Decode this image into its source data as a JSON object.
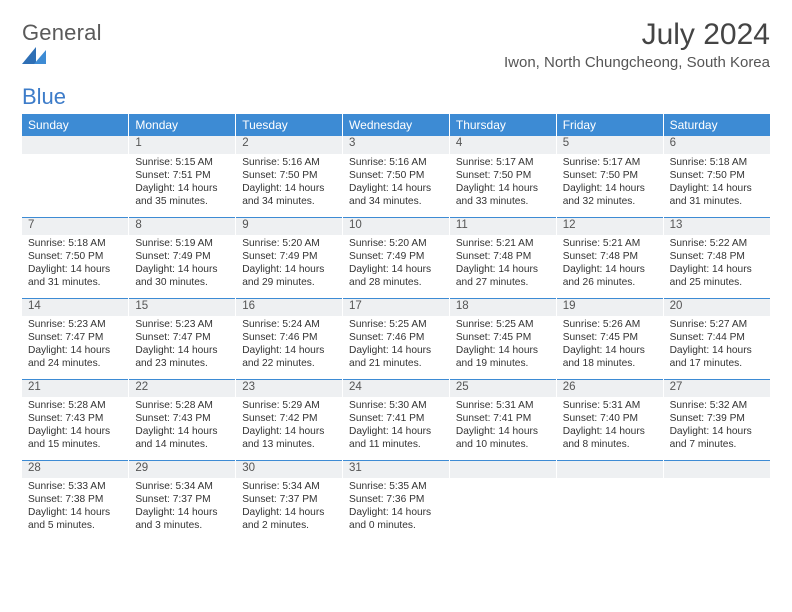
{
  "logo": {
    "word1": "General",
    "word2": "Blue",
    "colorGray": "#5a5a5a",
    "colorBlue": "#3d7cc9"
  },
  "title": "July 2024",
  "subtitle": "Iwon, North Chungcheong, South Korea",
  "headerBarColor": "#3d8bd4",
  "dayNumBg": "#eef0f2",
  "dayNames": [
    "Sunday",
    "Monday",
    "Tuesday",
    "Wednesday",
    "Thursday",
    "Friday",
    "Saturday"
  ],
  "weeks": [
    [
      null,
      {
        "n": "1",
        "sr": "5:15 AM",
        "ss": "7:51 PM",
        "dl": "14 hours and 35 minutes."
      },
      {
        "n": "2",
        "sr": "5:16 AM",
        "ss": "7:50 PM",
        "dl": "14 hours and 34 minutes."
      },
      {
        "n": "3",
        "sr": "5:16 AM",
        "ss": "7:50 PM",
        "dl": "14 hours and 34 minutes."
      },
      {
        "n": "4",
        "sr": "5:17 AM",
        "ss": "7:50 PM",
        "dl": "14 hours and 33 minutes."
      },
      {
        "n": "5",
        "sr": "5:17 AM",
        "ss": "7:50 PM",
        "dl": "14 hours and 32 minutes."
      },
      {
        "n": "6",
        "sr": "5:18 AM",
        "ss": "7:50 PM",
        "dl": "14 hours and 31 minutes."
      }
    ],
    [
      {
        "n": "7",
        "sr": "5:18 AM",
        "ss": "7:50 PM",
        "dl": "14 hours and 31 minutes."
      },
      {
        "n": "8",
        "sr": "5:19 AM",
        "ss": "7:49 PM",
        "dl": "14 hours and 30 minutes."
      },
      {
        "n": "9",
        "sr": "5:20 AM",
        "ss": "7:49 PM",
        "dl": "14 hours and 29 minutes."
      },
      {
        "n": "10",
        "sr": "5:20 AM",
        "ss": "7:49 PM",
        "dl": "14 hours and 28 minutes."
      },
      {
        "n": "11",
        "sr": "5:21 AM",
        "ss": "7:48 PM",
        "dl": "14 hours and 27 minutes."
      },
      {
        "n": "12",
        "sr": "5:21 AM",
        "ss": "7:48 PM",
        "dl": "14 hours and 26 minutes."
      },
      {
        "n": "13",
        "sr": "5:22 AM",
        "ss": "7:48 PM",
        "dl": "14 hours and 25 minutes."
      }
    ],
    [
      {
        "n": "14",
        "sr": "5:23 AM",
        "ss": "7:47 PM",
        "dl": "14 hours and 24 minutes."
      },
      {
        "n": "15",
        "sr": "5:23 AM",
        "ss": "7:47 PM",
        "dl": "14 hours and 23 minutes."
      },
      {
        "n": "16",
        "sr": "5:24 AM",
        "ss": "7:46 PM",
        "dl": "14 hours and 22 minutes."
      },
      {
        "n": "17",
        "sr": "5:25 AM",
        "ss": "7:46 PM",
        "dl": "14 hours and 21 minutes."
      },
      {
        "n": "18",
        "sr": "5:25 AM",
        "ss": "7:45 PM",
        "dl": "14 hours and 19 minutes."
      },
      {
        "n": "19",
        "sr": "5:26 AM",
        "ss": "7:45 PM",
        "dl": "14 hours and 18 minutes."
      },
      {
        "n": "20",
        "sr": "5:27 AM",
        "ss": "7:44 PM",
        "dl": "14 hours and 17 minutes."
      }
    ],
    [
      {
        "n": "21",
        "sr": "5:28 AM",
        "ss": "7:43 PM",
        "dl": "14 hours and 15 minutes."
      },
      {
        "n": "22",
        "sr": "5:28 AM",
        "ss": "7:43 PM",
        "dl": "14 hours and 14 minutes."
      },
      {
        "n": "23",
        "sr": "5:29 AM",
        "ss": "7:42 PM",
        "dl": "14 hours and 13 minutes."
      },
      {
        "n": "24",
        "sr": "5:30 AM",
        "ss": "7:41 PM",
        "dl": "14 hours and 11 minutes."
      },
      {
        "n": "25",
        "sr": "5:31 AM",
        "ss": "7:41 PM",
        "dl": "14 hours and 10 minutes."
      },
      {
        "n": "26",
        "sr": "5:31 AM",
        "ss": "7:40 PM",
        "dl": "14 hours and 8 minutes."
      },
      {
        "n": "27",
        "sr": "5:32 AM",
        "ss": "7:39 PM",
        "dl": "14 hours and 7 minutes."
      }
    ],
    [
      {
        "n": "28",
        "sr": "5:33 AM",
        "ss": "7:38 PM",
        "dl": "14 hours and 5 minutes."
      },
      {
        "n": "29",
        "sr": "5:34 AM",
        "ss": "7:37 PM",
        "dl": "14 hours and 3 minutes."
      },
      {
        "n": "30",
        "sr": "5:34 AM",
        "ss": "7:37 PM",
        "dl": "14 hours and 2 minutes."
      },
      {
        "n": "31",
        "sr": "5:35 AM",
        "ss": "7:36 PM",
        "dl": "14 hours and 0 minutes."
      },
      null,
      null,
      null
    ]
  ],
  "labels": {
    "sunrise": "Sunrise:",
    "sunset": "Sunset:",
    "daylight": "Daylight:"
  }
}
